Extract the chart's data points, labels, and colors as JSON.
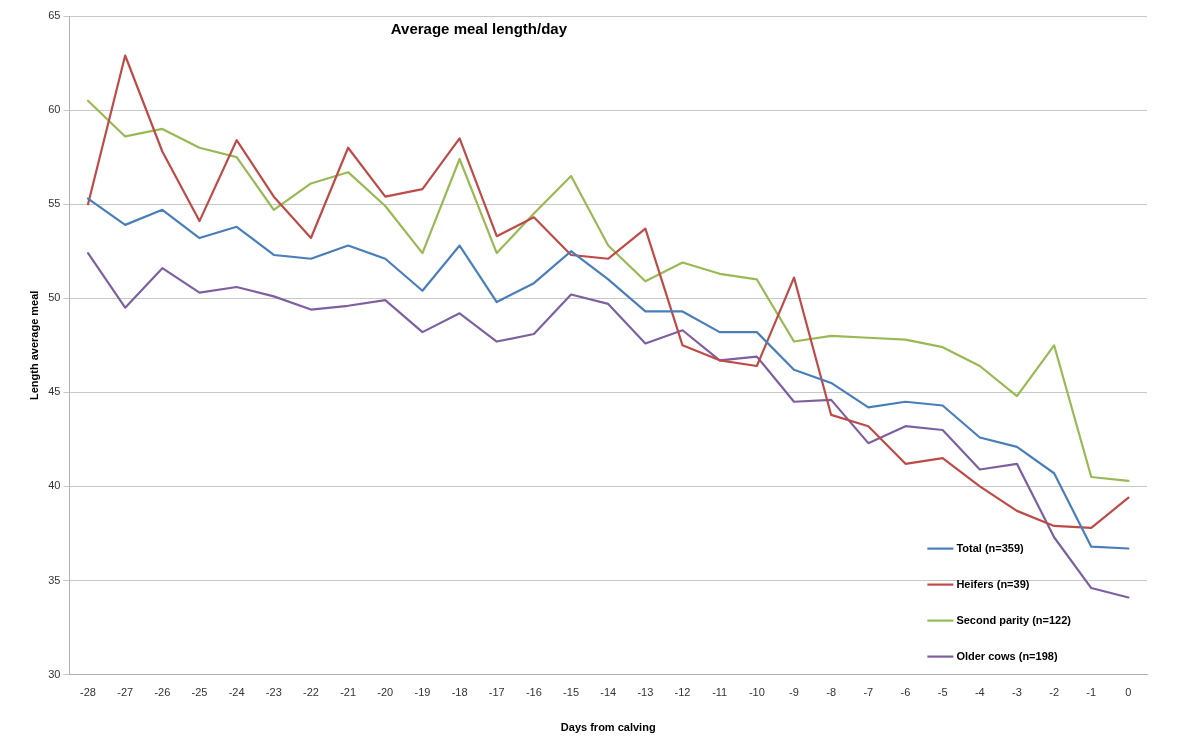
{
  "chart_data": {
    "type": "line",
    "title": "Average meal length/day",
    "xlabel": "Days from calving",
    "ylabel": "Length average meal",
    "categories": [
      "-28",
      "-27",
      "-26",
      "-25",
      "-24",
      "-23",
      "-22",
      "-21",
      "-20",
      "-19",
      "-18",
      "-17",
      "-16",
      "-15",
      "-14",
      "-13",
      "-12",
      "-11",
      "-10",
      "-9",
      "-8",
      "-7",
      "-6",
      "-5",
      "-4",
      "-3",
      "-2",
      "-1",
      "0"
    ],
    "series": [
      {
        "name": "Total (n=359)",
        "color": "#4a7ebb",
        "values": [
          55.3,
          53.9,
          54.7,
          53.2,
          53.8,
          52.3,
          52.1,
          52.8,
          52.1,
          50.4,
          52.8,
          49.8,
          50.8,
          52.5,
          51.0,
          49.3,
          49.3,
          48.2,
          48.2,
          46.2,
          45.5,
          44.2,
          44.5,
          44.3,
          42.6,
          42.1,
          40.7,
          36.8,
          36.7
        ]
      },
      {
        "name": "Heifers (n=39)",
        "color": "#be4b48",
        "values": [
          55.0,
          62.9,
          57.8,
          54.1,
          58.4,
          55.4,
          53.2,
          58.0,
          55.4,
          55.8,
          58.5,
          53.3,
          54.3,
          52.3,
          52.1,
          53.7,
          47.5,
          46.7,
          46.4,
          51.1,
          43.8,
          43.2,
          41.2,
          41.5,
          40.0,
          38.7,
          37.9,
          37.8,
          39.4
        ]
      },
      {
        "name": "Second parity (n=122)",
        "color": "#98b954",
        "values": [
          60.5,
          58.6,
          59.0,
          58.0,
          57.5,
          54.7,
          56.1,
          56.7,
          54.9,
          52.4,
          57.4,
          52.4,
          54.5,
          56.5,
          52.8,
          50.9,
          51.9,
          51.3,
          51.0,
          47.7,
          48.0,
          47.9,
          47.8,
          47.4,
          46.4,
          44.8,
          47.5,
          40.5,
          40.3
        ]
      },
      {
        "name": "Older cows (n=198)",
        "color": "#7d60a0",
        "values": [
          52.4,
          49.5,
          51.6,
          50.3,
          50.6,
          50.1,
          49.4,
          49.6,
          49.9,
          48.2,
          49.2,
          47.7,
          48.1,
          50.2,
          49.7,
          47.6,
          48.3,
          46.7,
          46.9,
          44.5,
          44.6,
          42.3,
          43.2,
          43.0,
          40.9,
          41.2,
          37.3,
          34.6,
          34.1
        ]
      }
    ],
    "ylim": [
      30,
      65
    ],
    "yticks": [
      30,
      35,
      40,
      45,
      50,
      55,
      60,
      65
    ],
    "grid": "y",
    "legend": "bottom right",
    "marker": "none",
    "line_style": "solid"
  }
}
